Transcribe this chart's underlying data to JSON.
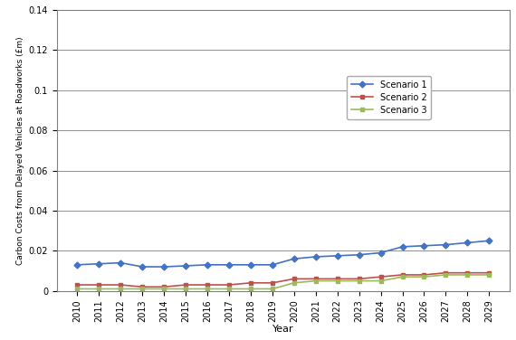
{
  "years": [
    2010,
    2011,
    2012,
    2013,
    2014,
    2015,
    2016,
    2017,
    2018,
    2019,
    2020,
    2021,
    2022,
    2023,
    2024,
    2025,
    2026,
    2027,
    2028,
    2029
  ],
  "scenario1": [
    0.013,
    0.0135,
    0.014,
    0.012,
    0.012,
    0.0125,
    0.013,
    0.013,
    0.013,
    0.013,
    0.016,
    0.017,
    0.0175,
    0.018,
    0.019,
    0.022,
    0.0225,
    0.023,
    0.024,
    0.025
  ],
  "scenario2": [
    0.003,
    0.003,
    0.003,
    0.002,
    0.002,
    0.003,
    0.003,
    0.003,
    0.004,
    0.004,
    0.006,
    0.006,
    0.006,
    0.006,
    0.007,
    0.008,
    0.008,
    0.009,
    0.009,
    0.009
  ],
  "scenario3": [
    0.001,
    0.001,
    0.001,
    0.001,
    0.001,
    0.001,
    0.001,
    0.001,
    0.001,
    0.001,
    0.004,
    0.005,
    0.005,
    0.005,
    0.005,
    0.007,
    0.007,
    0.008,
    0.008,
    0.008
  ],
  "color1": "#4472C4",
  "color2": "#C0504D",
  "color3": "#9BBB59",
  "ylabel": "Carbon Costs from Delayed Vehicles at Roadworks (£m)",
  "xlabel": "Year",
  "ylim_min": 0,
  "ylim_max": 0.14,
  "ytick_values": [
    0,
    0.02,
    0.04,
    0.06,
    0.08,
    0.1,
    0.12,
    0.14
  ],
  "ytick_labels": [
    "0",
    "0.02",
    "0.04",
    "0.06",
    "0.08",
    "0.1",
    "0.12",
    "0.14"
  ],
  "legend_labels": [
    "Scenario 1",
    "Scenario 2",
    "Scenario 3"
  ],
  "background_color": "#ffffff",
  "grid_color": "#808080",
  "outer_border_color": "#808080"
}
